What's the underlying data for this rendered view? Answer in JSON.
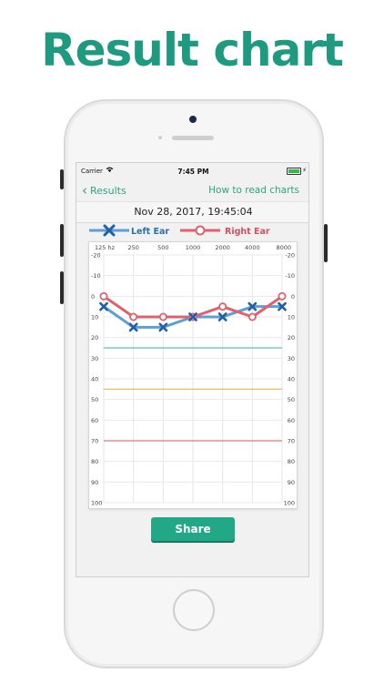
{
  "headline": "Result chart",
  "status_bar": {
    "carrier": "Carrier",
    "time": "7:45 PM"
  },
  "nav": {
    "back_label": "Results",
    "right_link": "How to read charts"
  },
  "date": "Nov 28, 2017, 19:45:04",
  "legend": {
    "left": "Left Ear",
    "right": "Right Ear"
  },
  "share_label": "Share",
  "colors": {
    "accent": "#2fa384",
    "left_ear": "#5b9fd6",
    "left_marker": "#1f5fa8",
    "right_ear": "#e0606d",
    "line_green": "#5ec2b0",
    "line_yellow": "#e6b84a",
    "line_red": "#e5777e"
  },
  "chart_data": {
    "type": "line",
    "x": [
      "125 hz",
      "250",
      "500",
      "1000",
      "2000",
      "4000",
      "8000"
    ],
    "y_ticks": [
      "-20",
      "-10",
      "0",
      "10",
      "20",
      "30",
      "40",
      "50",
      "60",
      "70",
      "80",
      "90",
      "100"
    ],
    "ylim": [
      -20,
      100
    ],
    "y_inverted": true,
    "series": [
      {
        "name": "Left Ear",
        "values": [
          5,
          15,
          15,
          10,
          10,
          5,
          5
        ]
      },
      {
        "name": "Right Ear",
        "values": [
          0,
          10,
          10,
          10,
          5,
          10,
          0
        ]
      }
    ],
    "reference_lines": [
      25,
      45,
      70
    ]
  }
}
